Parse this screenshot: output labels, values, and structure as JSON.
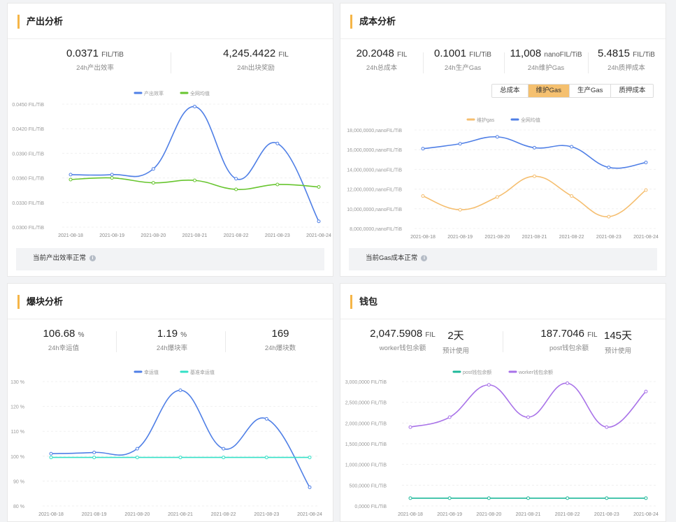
{
  "output_panel": {
    "title": "产出分析",
    "stats": [
      {
        "value": "0.0371",
        "unit": "FIL/TiB",
        "label": "24h产出效率"
      },
      {
        "value": "4,245.4422",
        "unit": "FIL",
        "label": "24h出块奖励"
      }
    ],
    "status_text": "当前产出效率正常",
    "status_icon": "info-icon"
  },
  "cost_panel": {
    "title": "成本分析",
    "stats": [
      {
        "value": "20.2048",
        "unit": "FIL",
        "label": "24h总成本"
      },
      {
        "value": "0.1001",
        "unit": "FIL/TiB",
        "label": "24h生产Gas"
      },
      {
        "value": "11,008",
        "unit": "nanoFIL/TiB",
        "label": "24h维护Gas"
      },
      {
        "value": "5.4815",
        "unit": "FIL/TiB",
        "label": "24h质押成本"
      }
    ],
    "tabs": [
      {
        "label": "总成本",
        "active": false
      },
      {
        "label": "维护Gas",
        "active": true
      },
      {
        "label": "生产Gas",
        "active": false
      },
      {
        "label": "质押成本",
        "active": false
      }
    ],
    "status_text": "当前Gas成本正常",
    "status_icon": "info-icon"
  },
  "block_panel": {
    "title": "爆块分析",
    "stats": [
      {
        "value": "106.68",
        "unit": "%",
        "label": "24h幸运值"
      },
      {
        "value": "1.19",
        "unit": "%",
        "label": "24h爆块率"
      },
      {
        "value": "169",
        "unit": "",
        "label": "24h爆块数"
      }
    ]
  },
  "wallet_panel": {
    "title": "钱包",
    "groups": [
      {
        "value": "2,047.5908",
        "unit": "FIL",
        "label": "worker钱包余额",
        "days": "2天",
        "days_label": "预计使用"
      },
      {
        "value": "187.7046",
        "unit": "FIL",
        "label": "post钱包余额",
        "days": "145天",
        "days_label": "预计使用"
      }
    ]
  },
  "chart_data": [
    {
      "id": "output",
      "type": "line",
      "x": [
        "2021-08-18",
        "2021-08-19",
        "2021-08-20",
        "2021-08-21",
        "2021-08-22",
        "2021-08-23",
        "2021-08-24"
      ],
      "series": [
        {
          "name": "产出效率",
          "color": "#4f7fe6",
          "values": [
            0.0364,
            0.0364,
            0.0371,
            0.0447,
            0.0359,
            0.0402,
            0.0307
          ]
        },
        {
          "name": "全网均值",
          "color": "#67c52e",
          "values": [
            0.0358,
            0.036,
            0.0354,
            0.0357,
            0.0346,
            0.0352,
            0.0349
          ]
        }
      ],
      "yticks": [
        "0.0300 FIL/TiB",
        "0.0330 FIL/TiB",
        "0.0360 FIL/TiB",
        "0.0390 FIL/TiB",
        "0.0420 FIL/TiB",
        "0.0450 FIL/TiB"
      ],
      "ylim": [
        0.03,
        0.045
      ]
    },
    {
      "id": "cost",
      "type": "line",
      "x": [
        "2021-08-18",
        "2021-08-19",
        "2021-08-20",
        "2021-08-21",
        "2021-08-22",
        "2021-08-23",
        "2021-08-24"
      ],
      "series": [
        {
          "name": "维护gas",
          "color": "#f5be6f",
          "values": [
            11300,
            9900,
            11200,
            13300,
            11300,
            9200,
            11900
          ]
        },
        {
          "name": "全网均值",
          "color": "#4f7fe6",
          "values": [
            16100,
            16600,
            17300,
            16200,
            16300,
            14200,
            14700
          ]
        }
      ],
      "yticks": [
        "8,000,0000,nanoFIL/TiB",
        "10,000,0000,nanoFIL/TiB",
        "12,000,0000,nanoFIL/TiB",
        "14,000,0000,nanoFIL/TiB",
        "16,000,0000,nanoFIL/TiB",
        "18,000,0000,nanoFIL/TiB"
      ],
      "ylim": [
        8000,
        18000
      ]
    },
    {
      "id": "block",
      "type": "line",
      "x": [
        "2021-08-18",
        "2021-08-19",
        "2021-08-20",
        "2021-08-21",
        "2021-08-22",
        "2021-08-23",
        "2021-08-24"
      ],
      "series": [
        {
          "name": "幸运值",
          "color": "#4f7fe6",
          "values": [
            101,
            101.5,
            103,
            126.5,
            103,
            115,
            87.5
          ]
        },
        {
          "name": "基准幸运值",
          "color": "#33e0c6",
          "values": [
            99.5,
            99.5,
            99.5,
            99.5,
            99.5,
            99.5,
            99.5
          ]
        }
      ],
      "yticks": [
        "80 %",
        "90 %",
        "100 %",
        "110 %",
        "120 %",
        "130 %"
      ],
      "ylim": [
        80,
        130
      ]
    },
    {
      "id": "wallet",
      "type": "line",
      "x": [
        "2021-08-18",
        "2021-08-19",
        "2021-08-20",
        "2021-08-21",
        "2021-08-22",
        "2021-08-23",
        "2021-08-24"
      ],
      "series": [
        {
          "name": "post钱包余额",
          "color": "#1fb89a",
          "values": [
            187,
            187,
            187,
            187,
            187,
            187,
            187
          ]
        },
        {
          "name": "worker钱包余额",
          "color": "#a872e8",
          "values": [
            1900,
            2140,
            2920,
            2140,
            2960,
            1900,
            2760
          ]
        }
      ],
      "yticks": [
        "0,0000 FIL/TiB",
        "500,0000 FIL/TiB",
        "1,000,0000 FIL/TiB",
        "1,500,0000 FIL/TiB",
        "2,000,0000 FIL/TiB",
        "2,500,0000 FIL/TiB",
        "3,000,0000 FIL/TiB"
      ],
      "ylim": [
        0,
        3000
      ]
    }
  ]
}
